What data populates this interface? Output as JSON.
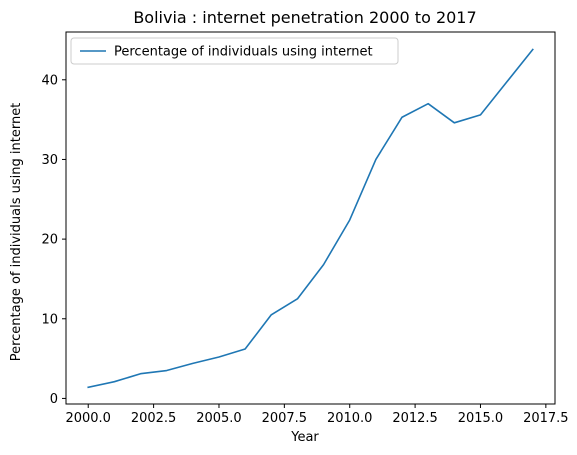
{
  "chart_data": {
    "type": "line",
    "title": "Bolivia : internet penetration 2000 to 2017",
    "xlabel": "Year",
    "ylabel": "Percentage of individuals using internet",
    "xlim": [
      1999.15,
      2017.85
    ],
    "ylim": [
      -0.7,
      46.0
    ],
    "xticks": [
      2000.0,
      2002.5,
      2005.0,
      2007.5,
      2010.0,
      2012.5,
      2015.0,
      2017.5
    ],
    "xtick_labels": [
      "2000.0",
      "2002.5",
      "2005.0",
      "2007.5",
      "2010.0",
      "2012.5",
      "2015.0",
      "2017.5"
    ],
    "yticks": [
      0,
      10,
      20,
      30,
      40
    ],
    "ytick_labels": [
      "0",
      "10",
      "20",
      "30",
      "40"
    ],
    "grid": false,
    "legend_position": "top-left",
    "series": [
      {
        "name": "Percentage of individuals using internet",
        "color": "#1f77b4",
        "x": [
          2000,
          2001,
          2002,
          2003,
          2004,
          2005,
          2006,
          2007,
          2008,
          2009,
          2010,
          2011,
          2012,
          2013,
          2014,
          2015,
          2016,
          2017
        ],
        "y": [
          1.4,
          2.1,
          3.1,
          3.5,
          4.4,
          5.2,
          6.2,
          10.5,
          12.5,
          16.8,
          22.4,
          30.0,
          35.3,
          37.0,
          34.6,
          35.6,
          39.7,
          43.8
        ]
      }
    ]
  }
}
